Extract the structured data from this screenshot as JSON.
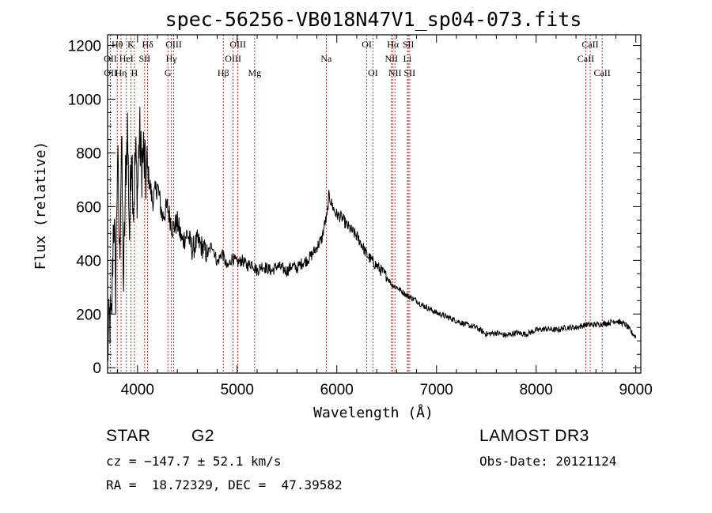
{
  "chart_data": {
    "type": "line",
    "title": "spec-56256-VB018N47V1_sp04-073.fits",
    "xlabel": "Wavelength (Å)",
    "ylabel": "Flux (relative)",
    "xlim": [
      3700,
      9050
    ],
    "ylim": [
      -20,
      1240
    ],
    "xticks": [
      4000,
      5000,
      6000,
      7000,
      8000,
      9000
    ],
    "yticks": [
      0,
      200,
      400,
      600,
      800,
      1000,
      1200
    ],
    "grid": false,
    "series": [
      {
        "name": "flux",
        "x": [
          3700,
          3720,
          3740,
          3760,
          3780,
          3800,
          3820,
          3840,
          3860,
          3880,
          3900,
          3920,
          3940,
          3960,
          3980,
          4000,
          4020,
          4040,
          4060,
          4080,
          4100,
          4150,
          4200,
          4250,
          4300,
          4350,
          4400,
          4450,
          4500,
          4550,
          4600,
          4650,
          4700,
          4750,
          4800,
          4850,
          4900,
          4950,
          5000,
          5050,
          5100,
          5150,
          5200,
          5250,
          5300,
          5350,
          5400,
          5450,
          5500,
          5550,
          5600,
          5650,
          5700,
          5750,
          5800,
          5850,
          5880,
          5900,
          5920,
          5940,
          5960,
          5980,
          6000,
          6050,
          6100,
          6150,
          6200,
          6250,
          6300,
          6350,
          6400,
          6450,
          6500,
          6550,
          6600,
          6650,
          6700,
          6750,
          6800,
          6850,
          6900,
          6950,
          7000,
          7100,
          7200,
          7300,
          7400,
          7500,
          7600,
          7700,
          7800,
          7900,
          8000,
          8100,
          8200,
          8300,
          8400,
          8500,
          8600,
          8700,
          8800,
          8900,
          8960,
          9000
        ],
        "y": [
          50,
          180,
          150,
          600,
          300,
          800,
          400,
          850,
          300,
          700,
          900,
          500,
          850,
          600,
          800,
          650,
          880,
          750,
          800,
          700,
          740,
          620,
          680,
          560,
          600,
          520,
          540,
          470,
          500,
          440,
          470,
          450,
          420,
          460,
          390,
          430,
          370,
          410,
          390,
          400,
          380,
          390,
          360,
          380,
          370,
          360,
          380,
          370,
          360,
          380,
          370,
          390,
          400,
          420,
          450,
          480,
          540,
          560,
          640,
          620,
          600,
          580,
          570,
          560,
          530,
          510,
          490,
          460,
          420,
          400,
          380,
          360,
          340,
          310,
          300,
          285,
          270,
          260,
          250,
          235,
          225,
          215,
          205,
          190,
          175,
          160,
          150,
          125,
          130,
          120,
          130,
          125,
          140,
          145,
          140,
          150,
          150,
          160,
          160,
          165,
          175,
          160,
          130,
          115
        ]
      }
    ],
    "spectral_lines": [
      {
        "label": "Hθ",
        "wavelength": 3797,
        "row": 0
      },
      {
        "label": "OII",
        "wavelength": 3727,
        "row": 1
      },
      {
        "label": "OII",
        "wavelength": 3729,
        "row": 2
      },
      {
        "label": "Hη",
        "wavelength": 3835,
        "row": 2
      },
      {
        "label": "K",
        "wavelength": 3934,
        "row": 0
      },
      {
        "label": "HeI",
        "wavelength": 3889,
        "row": 1
      },
      {
        "label": "H",
        "wavelength": 3969,
        "row": 2
      },
      {
        "label": "SII",
        "wavelength": 4072,
        "row": 1
      },
      {
        "label": "Hδ",
        "wavelength": 4102,
        "row": 0
      },
      {
        "label": "OIII",
        "wavelength": 4363,
        "row": 0
      },
      {
        "label": "Hγ",
        "wavelength": 4340,
        "row": 1
      },
      {
        "label": "G",
        "wavelength": 4305,
        "row": 2
      },
      {
        "label": "Hβ",
        "wavelength": 4861,
        "row": 2
      },
      {
        "label": "OIII",
        "wavelength": 4959,
        "row": 1
      },
      {
        "label": "OIII",
        "wavelength": 5007,
        "row": 0
      },
      {
        "label": "Mg",
        "wavelength": 5175,
        "row": 2
      },
      {
        "label": "Na",
        "wavelength": 5894,
        "row": 1
      },
      {
        "label": "OI",
        "wavelength": 6300,
        "row": 0
      },
      {
        "label": "OI",
        "wavelength": 6363,
        "row": 2
      },
      {
        "label": "Hα",
        "wavelength": 6563,
        "row": 0
      },
      {
        "label": "NII",
        "wavelength": 6548,
        "row": 1
      },
      {
        "label": "NII",
        "wavelength": 6583,
        "row": 2
      },
      {
        "label": "SII",
        "wavelength": 6717,
        "row": 0
      },
      {
        "label": "Li",
        "wavelength": 6708,
        "row": 1
      },
      {
        "label": "SII",
        "wavelength": 6731,
        "row": 2
      },
      {
        "label": "CaII",
        "wavelength": 8498,
        "row": 1
      },
      {
        "label": "CaII",
        "wavelength": 8542,
        "row": 0
      },
      {
        "label": "CaII",
        "wavelength": 8662,
        "row": 2
      }
    ]
  },
  "footer": {
    "class_type": "STAR",
    "subclass": "G2",
    "survey": "LAMOST DR3",
    "cz": "cz = −147.7 ± 52.1 km/s",
    "obs_date": "Obs-Date: 20121124",
    "coords": "RA =  18.72329, DEC =  47.39582"
  }
}
